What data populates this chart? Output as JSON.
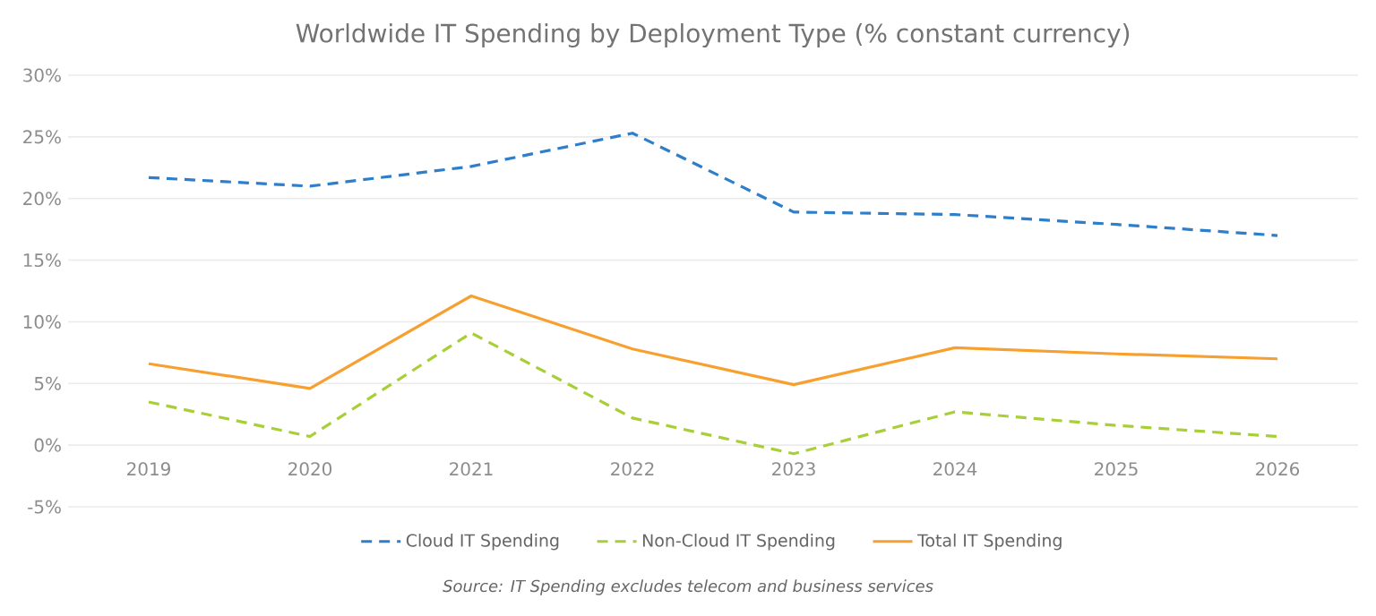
{
  "chart_data": {
    "type": "line",
    "title": "Worldwide IT Spending by Deployment Type (% constant currency)",
    "categories": [
      "2019",
      "2020",
      "2021",
      "2022",
      "2023",
      "2024",
      "2025",
      "2026"
    ],
    "series": [
      {
        "name": "Cloud IT Spending",
        "color": "#2e7ec9",
        "line_style": "dashed",
        "values": [
          21.7,
          21.0,
          22.6,
          25.3,
          18.9,
          18.7,
          17.9,
          17.0
        ]
      },
      {
        "name": "Non-Cloud IT Spending",
        "color": "#a9cf38",
        "line_style": "dashed",
        "values": [
          3.5,
          0.7,
          9.1,
          2.2,
          -0.7,
          2.7,
          1.6,
          0.7
        ]
      },
      {
        "name": "Total IT Spending",
        "color": "#f7a030",
        "line_style": "solid",
        "values": [
          6.6,
          4.6,
          12.1,
          7.8,
          4.9,
          7.9,
          7.4,
          7.0
        ]
      }
    ],
    "ylim": [
      -5,
      30
    ],
    "yticks": [
      {
        "value": -5,
        "label": "-5%"
      },
      {
        "value": 0,
        "label": "0%"
      },
      {
        "value": 5,
        "label": "5%"
      },
      {
        "value": 10,
        "label": "10%"
      },
      {
        "value": 15,
        "label": "15%"
      },
      {
        "value": 20,
        "label": "20%"
      },
      {
        "value": 25,
        "label": "25%"
      },
      {
        "value": 30,
        "label": "30%"
      }
    ],
    "grid": "y",
    "legend": "bottom",
    "annotations": [
      "Source: IT Spending excludes telecom and business services"
    ]
  }
}
